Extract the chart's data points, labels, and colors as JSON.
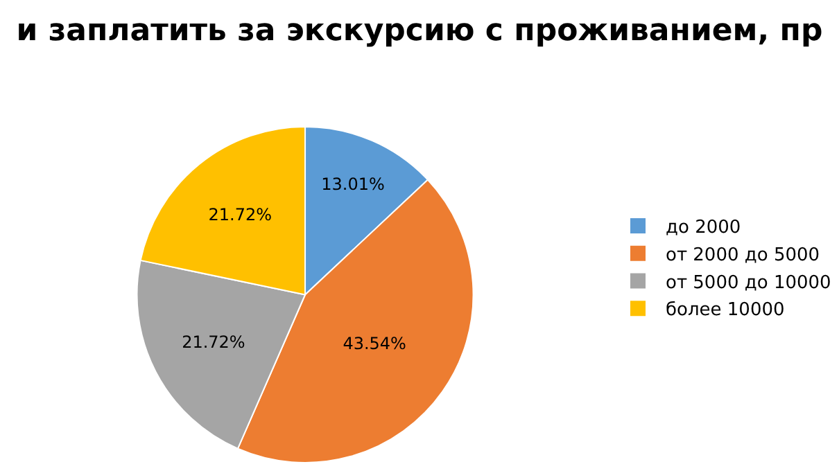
{
  "chart_data": {
    "type": "pie",
    "title": "и заплатить за экскурсию с проживанием, пр",
    "categories": [
      "до 2000",
      "от 2000 до 5000",
      "от 5000 до 10000",
      "более 10000"
    ],
    "values": [
      13.01,
      43.54,
      21.72,
      21.72
    ],
    "colors": [
      "#5b9bd5",
      "#ed7d31",
      "#a5a5a5",
      "#ffc000"
    ],
    "value_labels": [
      "13.01%",
      "43.54%",
      "21.72%",
      "21.72%"
    ],
    "legend": "right"
  }
}
